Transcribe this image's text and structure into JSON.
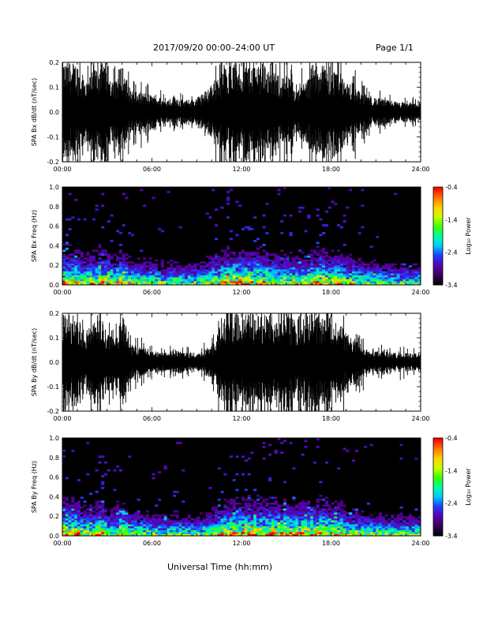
{
  "header": {
    "title": "2017/09/20  00:00–24:00 UT",
    "page": "Page 1/1"
  },
  "colors": {
    "waveform": "#000000",
    "spectrogram_background": "#000000",
    "colormap": [
      "#000000",
      "#3c005a",
      "#5a00b4",
      "#1e3cff",
      "#00c8ff",
      "#00ffa0",
      "#3cff00",
      "#c8ff00",
      "#ffd000",
      "#ff7800",
      "#ff0000"
    ]
  },
  "chart_data": [
    {
      "type": "line",
      "ylabel": "SPA Bx dB/dt (nT/sec)",
      "xlabel": "",
      "xlim": [
        "00:00",
        "24:00"
      ],
      "ylim": [
        -0.2,
        0.2
      ],
      "y_ticks": [
        "-0.2",
        "-0.1",
        "0.0",
        "0.1",
        "0.2"
      ],
      "x_ticks": [
        "00:00",
        "06:00",
        "12:00",
        "18:00",
        "24:00"
      ],
      "envelope": {
        "hours": [
          0,
          0.5,
          1,
          1.5,
          2,
          2.5,
          3,
          3.5,
          4,
          4.5,
          5,
          5.5,
          6,
          6.5,
          7,
          7.5,
          8,
          8.5,
          9,
          9.5,
          10,
          10.5,
          11,
          11.5,
          12,
          12.5,
          13,
          13.5,
          14,
          14.5,
          15,
          15.5,
          16,
          16.5,
          17,
          17.5,
          18,
          18.5,
          19,
          19.5,
          20,
          20.5,
          21,
          21.5,
          22,
          22.5,
          23,
          23.5,
          24
        ],
        "amplitude": [
          0.2,
          0.2,
          0.2,
          0.12,
          0.16,
          0.2,
          0.2,
          0.12,
          0.2,
          0.1,
          0.08,
          0.08,
          0.07,
          0.06,
          0.05,
          0.07,
          0.05,
          0.05,
          0.06,
          0.08,
          0.12,
          0.15,
          0.2,
          0.2,
          0.2,
          0.2,
          0.2,
          0.2,
          0.16,
          0.15,
          0.15,
          0.12,
          0.12,
          0.14,
          0.2,
          0.2,
          0.16,
          0.2,
          0.12,
          0.12,
          0.08,
          0.07,
          0.06,
          0.05,
          0.05,
          0.04,
          0.04,
          0.04,
          0.04
        ]
      }
    },
    {
      "type": "heatmap",
      "ylabel": "SPA Bx Freq (Hz)",
      "xlabel": "",
      "xlim": [
        "00:00",
        "24:00"
      ],
      "ylim": [
        0.0,
        1.0
      ],
      "y_ticks": [
        "0.0",
        "0.2",
        "0.4",
        "0.6",
        "0.8",
        "1.0"
      ],
      "x_ticks": [
        "00:00",
        "06:00",
        "12:00",
        "18:00",
        "24:00"
      ],
      "colorbar": {
        "label": "Log₁₀ Power",
        "range": [
          -3.4,
          -0.4
        ],
        "ticks": [
          "-0.4",
          "-1.4",
          "-2.4",
          "-3.4"
        ]
      }
    },
    {
      "type": "line",
      "ylabel": "SPA By dB/dt (nT/sec)",
      "xlabel": "",
      "xlim": [
        "00:00",
        "24:00"
      ],
      "ylim": [
        -0.2,
        0.2
      ],
      "y_ticks": [
        "-0.2",
        "-0.1",
        "0.0",
        "0.1",
        "0.2"
      ],
      "x_ticks": [
        "00:00",
        "06:00",
        "12:00",
        "18:00",
        "24:00"
      ],
      "envelope": {
        "hours": [
          0,
          0.5,
          1,
          1.5,
          2,
          2.5,
          3,
          3.5,
          4,
          4.5,
          5,
          5.5,
          6,
          6.5,
          7,
          7.5,
          8,
          8.5,
          9,
          9.5,
          10,
          10.5,
          11,
          11.5,
          12,
          12.5,
          13,
          13.5,
          14,
          14.5,
          15,
          15.5,
          16,
          16.5,
          17,
          17.5,
          18,
          18.5,
          19,
          19.5,
          20,
          20.5,
          21,
          21.5,
          22,
          22.5,
          23,
          23.5,
          24
        ],
        "amplitude": [
          0.2,
          0.2,
          0.2,
          0.12,
          0.16,
          0.2,
          0.12,
          0.1,
          0.2,
          0.08,
          0.07,
          0.06,
          0.05,
          0.04,
          0.04,
          0.06,
          0.04,
          0.04,
          0.04,
          0.05,
          0.08,
          0.14,
          0.2,
          0.2,
          0.2,
          0.2,
          0.2,
          0.2,
          0.2,
          0.2,
          0.2,
          0.18,
          0.2,
          0.2,
          0.2,
          0.2,
          0.16,
          0.18,
          0.12,
          0.1,
          0.08,
          0.06,
          0.05,
          0.05,
          0.04,
          0.04,
          0.04,
          0.04,
          0.04
        ]
      }
    },
    {
      "type": "heatmap",
      "ylabel": "SPA By Freq (Hz)",
      "xlabel": "",
      "xlim": [
        "00:00",
        "24:00"
      ],
      "ylim": [
        0.0,
        1.0
      ],
      "y_ticks": [
        "0.0",
        "0.2",
        "0.4",
        "0.6",
        "0.8",
        "1.0"
      ],
      "x_ticks": [
        "00:00",
        "06:00",
        "12:00",
        "18:00",
        "24:00"
      ],
      "colorbar": {
        "label": "Log₁₀ Power",
        "range": [
          -3.4,
          -0.4
        ],
        "ticks": [
          "-0.4",
          "-1.4",
          "-2.4",
          "-3.4"
        ]
      }
    }
  ],
  "xlabel": "Universal Time (hh:mm)"
}
